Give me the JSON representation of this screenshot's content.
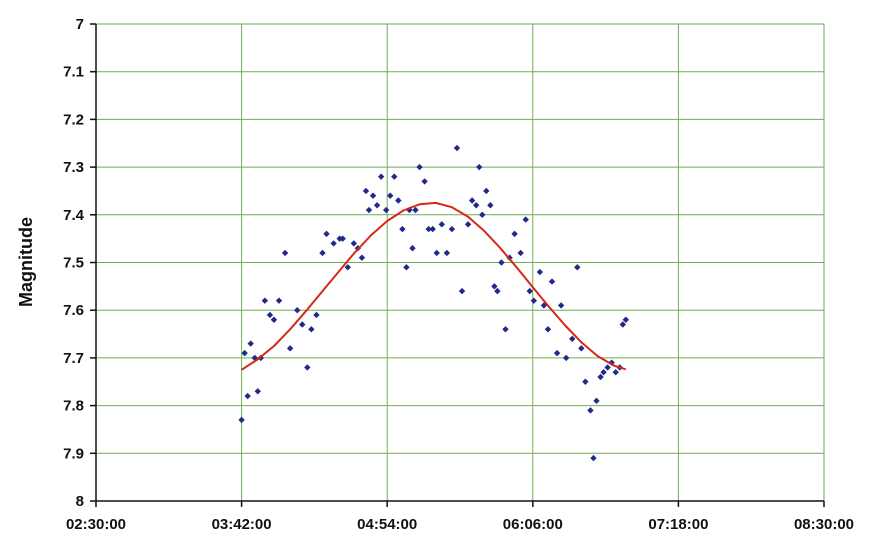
{
  "chart_data": {
    "type": "scatter",
    "title": "",
    "xlabel": "",
    "ylabel": "Magnitude",
    "x_axis": {
      "min": "02:30:00",
      "max": "08:30:00",
      "ticks": [
        "02:30:00",
        "03:42:00",
        "04:54:00",
        "06:06:00",
        "07:18:00",
        "08:30:00"
      ]
    },
    "y_axis": {
      "min": 7,
      "max": 8,
      "reversed": true,
      "ticks": [
        "7",
        "7.1",
        "7.2",
        "7.3",
        "7.4",
        "7.5",
        "7.6",
        "7.7",
        "7.8",
        "7.9",
        "8"
      ]
    },
    "grid": true,
    "legend": "none",
    "series": [
      {
        "kind": "points",
        "marker": "diamond",
        "color": "#1f2a8a",
        "points": [
          [
            "03:42:00",
            7.83
          ],
          [
            "03:43:30",
            7.69
          ],
          [
            "03:45:00",
            7.78
          ],
          [
            "03:46:30",
            7.67
          ],
          [
            "03:48:30",
            7.7
          ],
          [
            "03:50:00",
            7.77
          ],
          [
            "03:51:30",
            7.7
          ],
          [
            "03:53:30",
            7.58
          ],
          [
            "03:56:00",
            7.61
          ],
          [
            "03:58:00",
            7.62
          ],
          [
            "04:00:30",
            7.58
          ],
          [
            "04:03:30",
            7.48
          ],
          [
            "04:06:00",
            7.68
          ],
          [
            "04:09:30",
            7.6
          ],
          [
            "04:12:00",
            7.63
          ],
          [
            "04:14:30",
            7.72
          ],
          [
            "04:16:30",
            7.64
          ],
          [
            "04:19:00",
            7.61
          ],
          [
            "04:22:00",
            7.48
          ],
          [
            "04:24:00",
            7.44
          ],
          [
            "04:27:30",
            7.46
          ],
          [
            "04:30:30",
            7.45
          ],
          [
            "04:32:00",
            7.45
          ],
          [
            "04:34:30",
            7.51
          ],
          [
            "04:37:30",
            7.46
          ],
          [
            "04:39:30",
            7.47
          ],
          [
            "04:41:30",
            7.49
          ],
          [
            "04:43:30",
            7.35
          ],
          [
            "04:45:00",
            7.39
          ],
          [
            "04:47:00",
            7.36
          ],
          [
            "04:49:00",
            7.38
          ],
          [
            "04:51:00",
            7.32
          ],
          [
            "04:53:30",
            7.39
          ],
          [
            "04:55:30",
            7.36
          ],
          [
            "04:57:30",
            7.32
          ],
          [
            "04:59:30",
            7.37
          ],
          [
            "05:01:30",
            7.43
          ],
          [
            "05:03:30",
            7.51
          ],
          [
            "05:05:00",
            7.39
          ],
          [
            "05:06:30",
            7.47
          ],
          [
            "05:08:00",
            7.39
          ],
          [
            "05:10:00",
            7.3
          ],
          [
            "05:12:30",
            7.33
          ],
          [
            "05:14:30",
            7.43
          ],
          [
            "05:16:30",
            7.43
          ],
          [
            "05:18:30",
            7.48
          ],
          [
            "05:21:00",
            7.42
          ],
          [
            "05:23:30",
            7.48
          ],
          [
            "05:26:00",
            7.43
          ],
          [
            "05:28:30",
            7.26
          ],
          [
            "05:31:00",
            7.56
          ],
          [
            "05:34:00",
            7.42
          ],
          [
            "05:36:00",
            7.37
          ],
          [
            "05:38:00",
            7.38
          ],
          [
            "05:39:30",
            7.3
          ],
          [
            "05:41:00",
            7.4
          ],
          [
            "05:43:00",
            7.35
          ],
          [
            "05:45:00",
            7.38
          ],
          [
            "05:47:00",
            7.55
          ],
          [
            "05:48:30",
            7.56
          ],
          [
            "05:50:30",
            7.5
          ],
          [
            "05:52:30",
            7.64
          ],
          [
            "05:54:30",
            7.49
          ],
          [
            "05:57:00",
            7.44
          ],
          [
            "06:00:00",
            7.48
          ],
          [
            "06:02:30",
            7.41
          ],
          [
            "06:04:30",
            7.56
          ],
          [
            "06:06:30",
            7.58
          ],
          [
            "06:09:30",
            7.52
          ],
          [
            "06:11:30",
            7.59
          ],
          [
            "06:13:30",
            7.64
          ],
          [
            "06:15:30",
            7.54
          ],
          [
            "06:18:00",
            7.69
          ],
          [
            "06:20:00",
            7.59
          ],
          [
            "06:22:30",
            7.7
          ],
          [
            "06:25:30",
            7.66
          ],
          [
            "06:28:00",
            7.51
          ],
          [
            "06:30:00",
            7.68
          ],
          [
            "06:32:00",
            7.75
          ],
          [
            "06:34:30",
            7.81
          ],
          [
            "06:36:00",
            7.91
          ],
          [
            "06:37:30",
            7.79
          ],
          [
            "06:39:30",
            7.74
          ],
          [
            "06:41:00",
            7.73
          ],
          [
            "06:43:00",
            7.72
          ],
          [
            "06:45:00",
            7.71
          ],
          [
            "06:47:00",
            7.73
          ],
          [
            "06:49:00",
            7.72
          ],
          [
            "06:50:30",
            7.63
          ],
          [
            "06:52:00",
            7.62
          ]
        ]
      },
      {
        "kind": "curve",
        "color": "#d62818",
        "points": [
          [
            "03:42:00",
            7.725
          ],
          [
            "03:50:00",
            7.703
          ],
          [
            "03:58:00",
            7.675
          ],
          [
            "04:06:00",
            7.64
          ],
          [
            "04:14:00",
            7.601
          ],
          [
            "04:22:00",
            7.56
          ],
          [
            "04:30:00",
            7.519
          ],
          [
            "04:38:00",
            7.479
          ],
          [
            "04:46:00",
            7.443
          ],
          [
            "04:54:00",
            7.413
          ],
          [
            "05:02:00",
            7.391
          ],
          [
            "05:10:00",
            7.378
          ],
          [
            "05:18:00",
            7.375
          ],
          [
            "05:26:00",
            7.384
          ],
          [
            "05:34:00",
            7.404
          ],
          [
            "05:42:00",
            7.434
          ],
          [
            "05:50:00",
            7.47
          ],
          [
            "05:58:00",
            7.51
          ],
          [
            "06:06:00",
            7.552
          ],
          [
            "06:14:00",
            7.593
          ],
          [
            "06:22:00",
            7.632
          ],
          [
            "06:30:00",
            7.667
          ],
          [
            "06:38:00",
            7.696
          ],
          [
            "06:46:00",
            7.716
          ],
          [
            "06:52:00",
            7.724
          ]
        ]
      }
    ]
  }
}
